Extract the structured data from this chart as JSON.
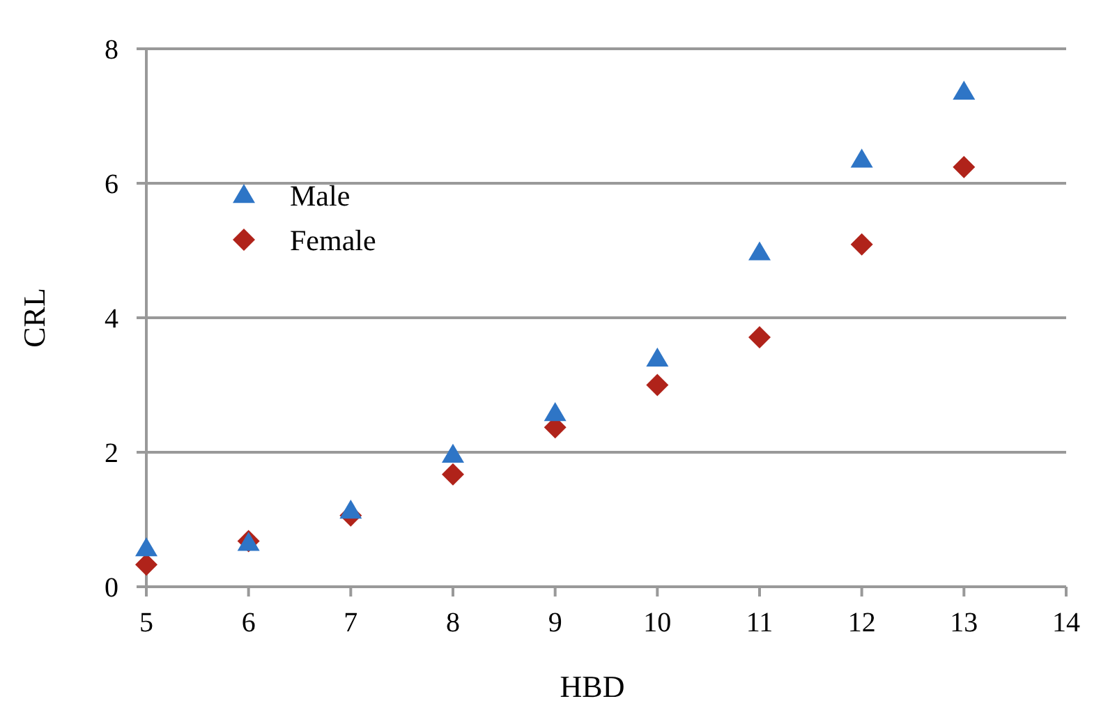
{
  "chart_data": {
    "type": "scatter",
    "xlabel": "HBD",
    "ylabel": "CRL",
    "xlim": [
      5,
      14
    ],
    "xticks": [
      5,
      6,
      7,
      8,
      9,
      10,
      11,
      12,
      13,
      14
    ],
    "ylim": [
      0,
      8
    ],
    "yticks": [
      0,
      2,
      4,
      6,
      8
    ],
    "grid": "y",
    "legend": "top left",
    "x": [
      5,
      6,
      7,
      8,
      9,
      10,
      11,
      12,
      13
    ],
    "series": [
      {
        "name": "Male",
        "color": "#2e75c6",
        "marker": "triangle",
        "values": [
          0.57,
          0.65,
          1.13,
          1.96,
          2.58,
          3.39,
          4.97,
          6.35,
          7.36
        ]
      },
      {
        "name": "Female",
        "color": "#b0231a",
        "marker": "diamond",
        "values": [
          0.33,
          0.68,
          1.06,
          1.67,
          2.37,
          3.0,
          3.71,
          5.09,
          6.24
        ]
      }
    ]
  }
}
